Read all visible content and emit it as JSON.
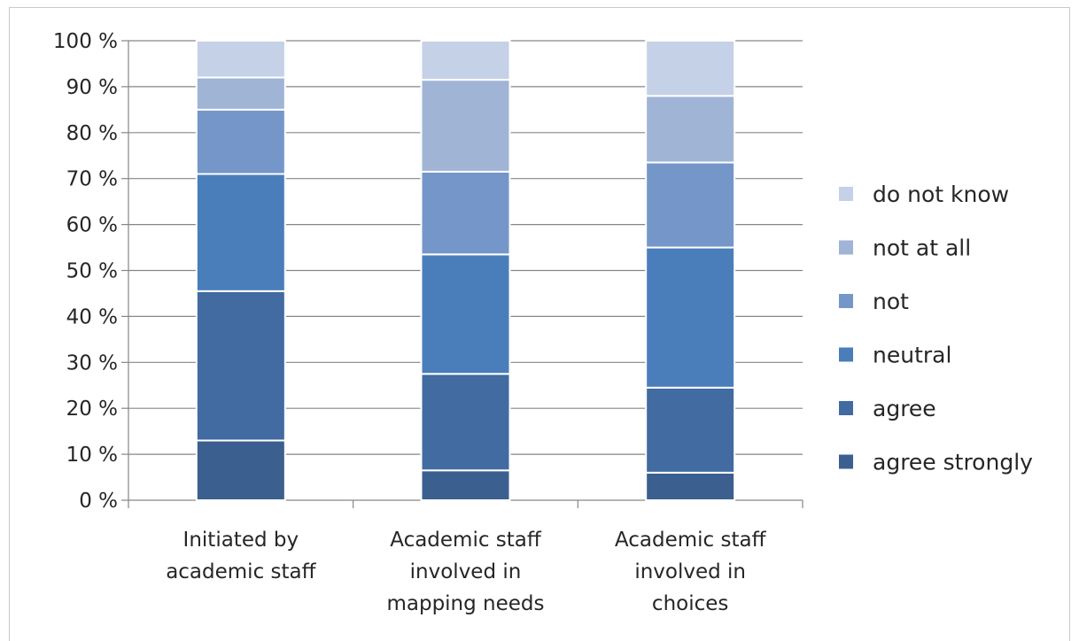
{
  "chart_data": {
    "type": "bar",
    "stacked": true,
    "normalized": true,
    "categories": [
      [
        "Initiated by",
        "academic staff"
      ],
      [
        "Academic staff",
        "involved in",
        "mapping needs"
      ],
      [
        "Academic staff",
        "involved in",
        "choices"
      ]
    ],
    "series": [
      {
        "name": "agree strongly",
        "color": "#3b5f8f",
        "values": [
          13,
          6.5,
          6
        ]
      },
      {
        "name": "agree",
        "color": "#416ba1",
        "values": [
          32.5,
          21,
          18.5
        ]
      },
      {
        "name": "neutral",
        "color": "#4a7ebb",
        "values": [
          25.5,
          26,
          30.5
        ]
      },
      {
        "name": "not",
        "color": "#7596c9",
        "values": [
          14,
          18,
          18.5
        ]
      },
      {
        "name": "not at all",
        "color": "#a0b4d6",
        "values": [
          7,
          20,
          14.5
        ]
      },
      {
        "name": "do not know",
        "color": "#c4d1e6",
        "values": [
          8,
          8.5,
          12
        ]
      }
    ],
    "yticks": [
      "0 %",
      "10 %",
      "20 %",
      "30 %",
      "40 %",
      "50 %",
      "60 %",
      "70 %",
      "80 %",
      "90 %",
      "100 %"
    ],
    "ylim": [
      0,
      100
    ],
    "grid": true,
    "legend": "right",
    "legend_order": "reverse"
  }
}
